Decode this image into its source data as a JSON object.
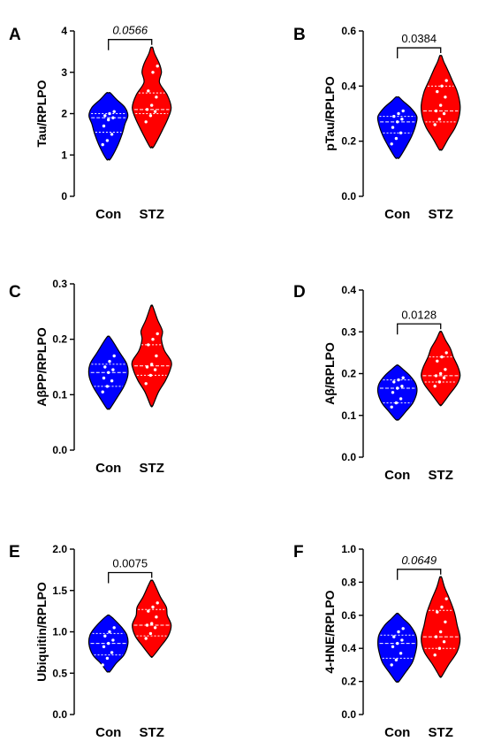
{
  "colors": {
    "con": "#0000ff",
    "stz": "#ff0000",
    "outline": "#000000",
    "dots": "#ffffff"
  },
  "chart_data": [
    {
      "type": "violin",
      "panel": "A",
      "ylabel": "Tau/RPLPO",
      "ylim": [
        0,
        4
      ],
      "yticks": [
        "0",
        "1",
        "2",
        "3",
        "4"
      ],
      "categories": [
        "Con",
        "STZ"
      ],
      "pvalue": "0.0566",
      "pvalue_italic": true,
      "series": [
        {
          "category": "Con",
          "min": 0.9,
          "max": 2.5,
          "median": 1.9,
          "q1": 1.55,
          "q3": 2.0,
          "profile": [
            [
              0.9,
              0.1
            ],
            [
              1.2,
              0.45
            ],
            [
              1.5,
              0.7
            ],
            [
              1.75,
              0.85
            ],
            [
              1.95,
              1.0
            ],
            [
              2.15,
              0.85
            ],
            [
              2.35,
              0.4
            ],
            [
              2.5,
              0.1
            ]
          ],
          "points": [
            1.25,
            1.35,
            1.5,
            1.7,
            1.85,
            1.9,
            1.95,
            2.0,
            2.05
          ]
        },
        {
          "category": "STZ",
          "min": 1.2,
          "max": 3.6,
          "median": 2.1,
          "q1": 2.0,
          "q3": 2.5,
          "profile": [
            [
              1.2,
              0.1
            ],
            [
              1.6,
              0.55
            ],
            [
              1.9,
              0.85
            ],
            [
              2.15,
              1.0
            ],
            [
              2.45,
              0.8
            ],
            [
              2.75,
              0.4
            ],
            [
              3.0,
              0.5
            ],
            [
              3.2,
              0.4
            ],
            [
              3.45,
              0.15
            ],
            [
              3.6,
              0.05
            ]
          ],
          "points": [
            1.8,
            1.95,
            2.05,
            2.1,
            2.2,
            2.4,
            2.55,
            3.0,
            3.15
          ]
        }
      ]
    },
    {
      "type": "violin",
      "panel": "B",
      "ylabel": "pTau/RPLPO",
      "ylim": [
        0,
        0.6
      ],
      "yticks": [
        "0.0",
        "0.2",
        "0.4",
        "0.6"
      ],
      "categories": [
        "Con",
        "STZ"
      ],
      "pvalue": "0.0384",
      "pvalue_italic": false,
      "series": [
        {
          "category": "Con",
          "min": 0.14,
          "max": 0.36,
          "median": 0.27,
          "q1": 0.23,
          "q3": 0.29,
          "profile": [
            [
              0.14,
              0.1
            ],
            [
              0.18,
              0.45
            ],
            [
              0.22,
              0.75
            ],
            [
              0.26,
              0.95
            ],
            [
              0.29,
              1.0
            ],
            [
              0.32,
              0.7
            ],
            [
              0.345,
              0.3
            ],
            [
              0.36,
              0.08
            ]
          ],
          "points": [
            0.19,
            0.21,
            0.23,
            0.25,
            0.27,
            0.28,
            0.29,
            0.3,
            0.31
          ]
        },
        {
          "category": "STZ",
          "min": 0.17,
          "max": 0.51,
          "median": 0.31,
          "q1": 0.27,
          "q3": 0.4,
          "profile": [
            [
              0.17,
              0.08
            ],
            [
              0.21,
              0.4
            ],
            [
              0.25,
              0.75
            ],
            [
              0.29,
              0.95
            ],
            [
              0.33,
              1.0
            ],
            [
              0.38,
              0.85
            ],
            [
              0.42,
              0.6
            ],
            [
              0.46,
              0.35
            ],
            [
              0.49,
              0.15
            ],
            [
              0.51,
              0.05
            ]
          ],
          "points": [
            0.26,
            0.28,
            0.3,
            0.31,
            0.33,
            0.36,
            0.38,
            0.4,
            0.42
          ]
        }
      ]
    },
    {
      "type": "violin",
      "panel": "C",
      "ylabel": "AβPP/RPLPO",
      "ylim": [
        0,
        0.3
      ],
      "yticks": [
        "0.0",
        "0.1",
        "0.2",
        "0.3"
      ],
      "categories": [
        "Con",
        "STZ"
      ],
      "pvalue": "",
      "pvalue_italic": false,
      "series": [
        {
          "category": "Con",
          "min": 0.075,
          "max": 0.205,
          "median": 0.14,
          "q1": 0.115,
          "q3": 0.155,
          "profile": [
            [
              0.075,
              0.08
            ],
            [
              0.095,
              0.45
            ],
            [
              0.115,
              0.8
            ],
            [
              0.135,
              1.0
            ],
            [
              0.155,
              0.95
            ],
            [
              0.175,
              0.6
            ],
            [
              0.195,
              0.25
            ],
            [
              0.205,
              0.05
            ]
          ],
          "points": [
            0.105,
            0.115,
            0.125,
            0.13,
            0.14,
            0.145,
            0.15,
            0.16,
            0.17
          ]
        },
        {
          "category": "STZ",
          "min": 0.08,
          "max": 0.26,
          "median": 0.152,
          "q1": 0.135,
          "q3": 0.19,
          "profile": [
            [
              0.08,
              0.05
            ],
            [
              0.105,
              0.35
            ],
            [
              0.125,
              0.7
            ],
            [
              0.145,
              0.95
            ],
            [
              0.16,
              1.0
            ],
            [
              0.18,
              0.65
            ],
            [
              0.2,
              0.5
            ],
            [
              0.215,
              0.55
            ],
            [
              0.235,
              0.3
            ],
            [
              0.26,
              0.05
            ]
          ],
          "points": [
            0.12,
            0.135,
            0.145,
            0.15,
            0.155,
            0.17,
            0.19,
            0.2,
            0.21
          ]
        }
      ]
    },
    {
      "type": "violin",
      "panel": "D",
      "ylabel": "Aβ/RPLPO",
      "ylim": [
        0,
        0.4
      ],
      "yticks": [
        "0.0",
        "0.1",
        "0.2",
        "0.3",
        "0.4"
      ],
      "categories": [
        "Con",
        "STZ"
      ],
      "pvalue": "0.0128",
      "pvalue_italic": false,
      "series": [
        {
          "category": "Con",
          "min": 0.09,
          "max": 0.22,
          "median": 0.165,
          "q1": 0.13,
          "q3": 0.185,
          "profile": [
            [
              0.09,
              0.08
            ],
            [
              0.11,
              0.45
            ],
            [
              0.13,
              0.8
            ],
            [
              0.155,
              1.0
            ],
            [
              0.175,
              0.95
            ],
            [
              0.195,
              0.65
            ],
            [
              0.21,
              0.3
            ],
            [
              0.22,
              0.05
            ]
          ],
          "points": [
            0.12,
            0.13,
            0.14,
            0.155,
            0.165,
            0.17,
            0.18,
            0.185,
            0.19
          ]
        },
        {
          "category": "STZ",
          "min": 0.125,
          "max": 0.3,
          "median": 0.195,
          "q1": 0.18,
          "q3": 0.24,
          "profile": [
            [
              0.125,
              0.05
            ],
            [
              0.15,
              0.45
            ],
            [
              0.175,
              0.85
            ],
            [
              0.195,
              1.0
            ],
            [
              0.215,
              0.9
            ],
            [
              0.24,
              0.65
            ],
            [
              0.26,
              0.5
            ],
            [
              0.28,
              0.25
            ],
            [
              0.3,
              0.05
            ]
          ],
          "points": [
            0.17,
            0.18,
            0.19,
            0.195,
            0.2,
            0.21,
            0.23,
            0.24,
            0.25
          ]
        }
      ]
    },
    {
      "type": "violin",
      "panel": "E",
      "ylabel": "Ubiquitin/RPLPO",
      "ylim": [
        0,
        2.0
      ],
      "yticks": [
        "0.0",
        "0.5",
        "1.0",
        "1.5",
        "2.0"
      ],
      "categories": [
        "Con",
        "STZ"
      ],
      "pvalue": "0.0075",
      "pvalue_italic": false,
      "series": [
        {
          "category": "Con",
          "min": 0.52,
          "max": 1.2,
          "median": 0.86,
          "q1": 0.72,
          "q3": 0.98,
          "profile": [
            [
              0.52,
              0.08
            ],
            [
              0.62,
              0.4
            ],
            [
              0.72,
              0.8
            ],
            [
              0.85,
              1.0
            ],
            [
              0.96,
              0.95
            ],
            [
              1.05,
              0.7
            ],
            [
              1.15,
              0.3
            ],
            [
              1.2,
              0.05
            ]
          ],
          "points": [
            0.6,
            0.68,
            0.75,
            0.82,
            0.86,
            0.9,
            0.95,
            1.0,
            1.05
          ]
        },
        {
          "category": "STZ",
          "min": 0.7,
          "max": 1.62,
          "median": 1.08,
          "q1": 0.95,
          "q3": 1.27,
          "profile": [
            [
              0.7,
              0.05
            ],
            [
              0.82,
              0.45
            ],
            [
              0.95,
              0.85
            ],
            [
              1.08,
              1.0
            ],
            [
              1.2,
              0.8
            ],
            [
              1.3,
              0.75
            ],
            [
              1.42,
              0.45
            ],
            [
              1.55,
              0.2
            ],
            [
              1.62,
              0.05
            ]
          ],
          "points": [
            0.92,
            0.98,
            1.05,
            1.08,
            1.1,
            1.18,
            1.25,
            1.3,
            1.35
          ]
        }
      ]
    },
    {
      "type": "violin",
      "panel": "F",
      "ylabel": "4-HNE/RPLPO",
      "ylim": [
        0,
        1.0
      ],
      "yticks": [
        "0.0",
        "0.2",
        "0.4",
        "0.6",
        "0.8",
        "1.0"
      ],
      "categories": [
        "Con",
        "STZ"
      ],
      "pvalue": "0.0649",
      "pvalue_italic": true,
      "series": [
        {
          "category": "Con",
          "min": 0.2,
          "max": 0.61,
          "median": 0.43,
          "q1": 0.34,
          "q3": 0.48,
          "profile": [
            [
              0.2,
              0.08
            ],
            [
              0.26,
              0.45
            ],
            [
              0.31,
              0.75
            ],
            [
              0.36,
              0.9
            ],
            [
              0.42,
              1.0
            ],
            [
              0.48,
              0.95
            ],
            [
              0.54,
              0.65
            ],
            [
              0.58,
              0.3
            ],
            [
              0.61,
              0.05
            ]
          ],
          "points": [
            0.3,
            0.33,
            0.37,
            0.41,
            0.43,
            0.45,
            0.47,
            0.5,
            0.52
          ]
        },
        {
          "category": "STZ",
          "min": 0.23,
          "max": 0.83,
          "median": 0.47,
          "q1": 0.4,
          "q3": 0.63,
          "profile": [
            [
              0.23,
              0.05
            ],
            [
              0.3,
              0.4
            ],
            [
              0.38,
              0.85
            ],
            [
              0.46,
              1.0
            ],
            [
              0.54,
              0.85
            ],
            [
              0.62,
              0.7
            ],
            [
              0.7,
              0.45
            ],
            [
              0.77,
              0.2
            ],
            [
              0.83,
              0.05
            ]
          ],
          "points": [
            0.36,
            0.4,
            0.44,
            0.47,
            0.5,
            0.56,
            0.62,
            0.65,
            0.7
          ]
        }
      ]
    }
  ]
}
